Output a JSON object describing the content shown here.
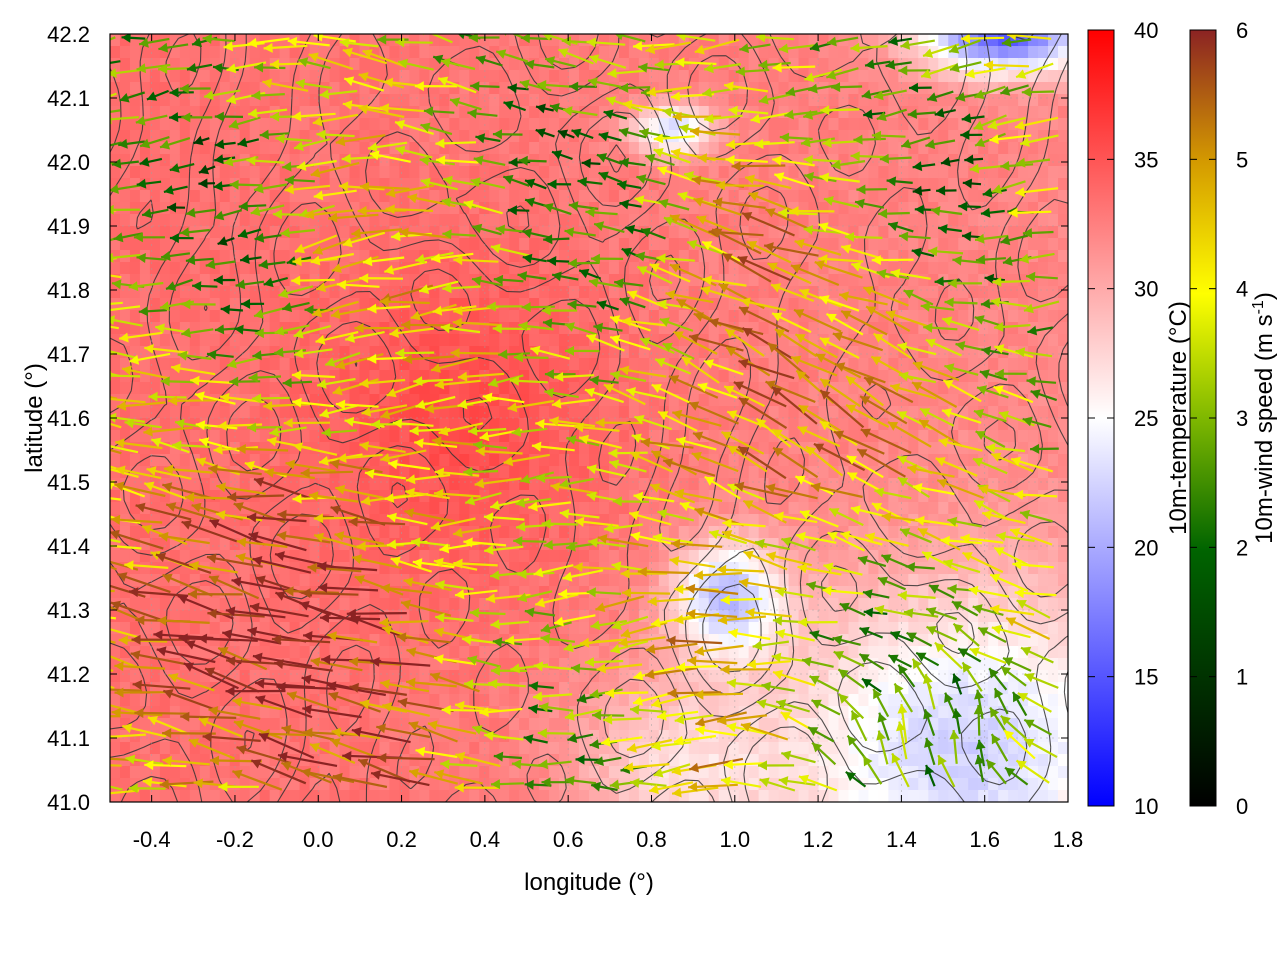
{
  "chart_data": {
    "type": "heatmap",
    "overlays": [
      "contour",
      "wind-vectors"
    ],
    "xlabel": "longitude (°)",
    "ylabel": "latitude (°)",
    "xlim": [
      -0.5,
      1.8
    ],
    "ylim": [
      41.0,
      42.2
    ],
    "x_ticks": [
      "-0.4",
      "-0.2",
      "0.0",
      "0.2",
      "0.4",
      "0.6",
      "0.8",
      "1.0",
      "1.2",
      "1.4",
      "1.6",
      "1.8"
    ],
    "x_tick_values": [
      -0.4,
      -0.2,
      0.0,
      0.2,
      0.4,
      0.6,
      0.8,
      1.0,
      1.2,
      1.4,
      1.6,
      1.8
    ],
    "y_ticks": [
      "41.0",
      "41.1",
      "41.2",
      "41.3",
      "41.4",
      "41.5",
      "41.6",
      "41.7",
      "41.8",
      "41.9",
      "42.0",
      "42.1",
      "42.2"
    ],
    "y_tick_values": [
      41.0,
      41.1,
      41.2,
      41.3,
      41.4,
      41.5,
      41.6,
      41.7,
      41.8,
      41.9,
      42.0,
      42.1,
      42.2
    ],
    "grid": true,
    "temperature_colorbar": {
      "title": "10m-temperature (°C)",
      "range": [
        10,
        40
      ],
      "ticks": [
        "10",
        "15",
        "20",
        "25",
        "30",
        "35",
        "40"
      ],
      "tick_values": [
        10,
        15,
        20,
        25,
        30,
        35,
        40
      ],
      "colors": [
        "#0000ff",
        "#ffffff",
        "#ff0000"
      ],
      "midpoint": 25
    },
    "wind_colorbar": {
      "title_prefix": "10m-wind speed (m s",
      "title_sup": "-1",
      "title_suffix": ")",
      "range": [
        0,
        6
      ],
      "ticks": [
        "0",
        "1",
        "2",
        "3",
        "4",
        "5",
        "6"
      ],
      "tick_values": [
        0,
        1,
        2,
        3,
        4,
        5,
        6
      ],
      "colors": [
        "#000000",
        "#006400",
        "#7fb800",
        "#ffff00",
        "#d49a00",
        "#8b2323"
      ]
    },
    "temperature_field_regions": [
      {
        "region": "west-central",
        "lon": [
          -0.5,
          0.7
        ],
        "lat": [
          41.0,
          42.2
        ],
        "temp_c": 33
      },
      {
        "region": "northeast",
        "lon": [
          0.7,
          1.8
        ],
        "lat": [
          41.6,
          42.2
        ],
        "temp_c": 32
      },
      {
        "region": "southeast",
        "lon": [
          1.2,
          1.8
        ],
        "lat": [
          41.0,
          41.3
        ],
        "temp_c": 23
      },
      {
        "region": "center-east",
        "lon": [
          0.8,
          1.2
        ],
        "lat": [
          41.2,
          41.45
        ],
        "temp_c": 21
      },
      {
        "region": "north-center",
        "lon": [
          0.75,
          0.95
        ],
        "lat": [
          42.0,
          42.1
        ],
        "temp_c": 22
      },
      {
        "region": "northeast-corner",
        "lon": [
          1.45,
          1.8
        ],
        "lat": [
          42.12,
          42.2
        ],
        "temp_c": 17
      }
    ],
    "wind_regimes": [
      {
        "region": "southwest",
        "direction_to_deg": 170,
        "speed_ms": 6
      },
      {
        "region": "northwest",
        "direction_to_deg": 180,
        "speed_ms": 4
      },
      {
        "region": "southeast",
        "direction_to_deg": 90,
        "speed_ms": 3
      },
      {
        "region": "east",
        "direction_to_deg": 150,
        "speed_ms": 5
      }
    ]
  }
}
